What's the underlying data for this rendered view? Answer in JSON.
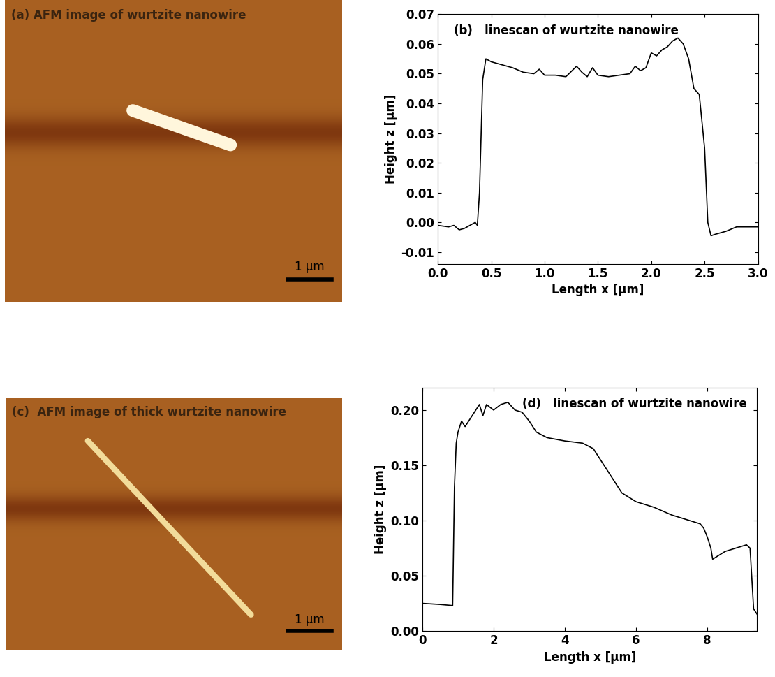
{
  "chart_data": [
    {
      "type": "image",
      "title": "(a) AFM image of wurtzite nanowire",
      "scale_bar": "1 µm"
    },
    {
      "type": "line",
      "title": "(b)   linescan of wurtzite nanowire",
      "x_label": "Length x [µm]",
      "y_label": "Height z [µm]",
      "x": [
        0.0,
        0.1,
        0.15,
        0.2,
        0.25,
        0.3,
        0.35,
        0.37,
        0.39,
        0.42,
        0.45,
        0.5,
        0.6,
        0.7,
        0.8,
        0.9,
        0.95,
        1.0,
        1.1,
        1.2,
        1.3,
        1.35,
        1.4,
        1.45,
        1.5,
        1.6,
        1.7,
        1.8,
        1.85,
        1.9,
        1.95,
        2.0,
        2.05,
        2.1,
        2.15,
        2.2,
        2.25,
        2.3,
        2.35,
        2.4,
        2.45,
        2.5,
        2.53,
        2.56,
        2.6,
        2.7,
        2.8,
        2.9,
        3.0
      ],
      "series": [
        {
          "name": "linescan",
          "color": "#000000",
          "values": [
            -0.001,
            -0.0015,
            -0.001,
            -0.0025,
            -0.002,
            -0.001,
            0.0,
            -0.001,
            0.01,
            0.048,
            0.055,
            0.054,
            0.053,
            0.052,
            0.0505,
            0.05,
            0.0515,
            0.0495,
            0.0495,
            0.049,
            0.0525,
            0.0505,
            0.049,
            0.052,
            0.0495,
            0.049,
            0.0495,
            0.05,
            0.0525,
            0.051,
            0.052,
            0.057,
            0.056,
            0.058,
            0.059,
            0.061,
            0.062,
            0.06,
            0.055,
            0.045,
            0.043,
            0.025,
            0.0,
            -0.0045,
            -0.004,
            -0.003,
            -0.0015,
            -0.0015,
            -0.0015
          ]
        }
      ],
      "xlim": [
        0.0,
        3.0
      ],
      "xticks": [
        {
          "value": 0,
          "label": "0.0"
        },
        0.5,
        {
          "value": 1,
          "label": "1.0"
        },
        1.5,
        {
          "value": 2,
          "label": "2.0"
        },
        2.5,
        {
          "value": 3,
          "label": "3.0"
        }
      ],
      "ylim": [
        -0.014,
        0.07
      ],
      "yticks": [
        -0.01,
        {
          "value": 0,
          "label": "0.00"
        },
        0.01,
        0.02,
        0.03,
        0.04,
        0.05,
        0.06,
        0.07
      ]
    },
    {
      "type": "image",
      "title": "(c)  AFM image of thick wurtzite nanowire",
      "scale_bar": "1 µm"
    },
    {
      "type": "line",
      "title": "(d)   linescan of wurtzite nanowire",
      "x_label": "Length x [µm]",
      "y_label": "Height z [µm]",
      "x": [
        0.0,
        0.5,
        0.85,
        0.9,
        0.95,
        1.0,
        1.1,
        1.2,
        1.4,
        1.6,
        1.7,
        1.8,
        2.0,
        2.2,
        2.4,
        2.6,
        2.8,
        3.0,
        3.2,
        3.5,
        4.0,
        4.5,
        4.8,
        5.0,
        5.3,
        5.6,
        6.0,
        6.5,
        7.0,
        7.5,
        7.8,
        7.9,
        8.0,
        8.1,
        8.15,
        8.3,
        8.5,
        8.8,
        9.1,
        9.2,
        9.3,
        9.4
      ],
      "series": [
        {
          "name": "linescan",
          "color": "#000000",
          "values": [
            0.025,
            0.024,
            0.023,
            0.13,
            0.17,
            0.18,
            0.19,
            0.185,
            0.195,
            0.205,
            0.195,
            0.205,
            0.2,
            0.205,
            0.207,
            0.2,
            0.198,
            0.19,
            0.18,
            0.175,
            0.172,
            0.17,
            0.165,
            0.155,
            0.14,
            0.125,
            0.117,
            0.112,
            0.105,
            0.1,
            0.097,
            0.093,
            0.085,
            0.075,
            0.065,
            0.068,
            0.072,
            0.075,
            0.078,
            0.075,
            0.02,
            0.015
          ]
        }
      ],
      "xlim": [
        0,
        9.4
      ],
      "xticks": [
        0,
        2,
        4,
        6,
        8
      ],
      "ylim": [
        0,
        0.22
      ],
      "yticks": [
        {
          "value": 0,
          "label": "0.00"
        },
        0.05,
        {
          "value": 0.1,
          "label": "0.10"
        },
        0.15,
        {
          "value": 0.2,
          "label": "0.20"
        }
      ]
    }
  ]
}
